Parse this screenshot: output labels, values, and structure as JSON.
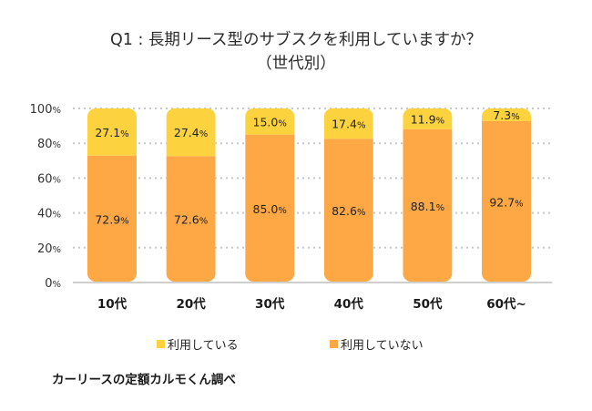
{
  "title": {
    "line1": "Q1 : 長期リース型のサブスクを利用していますか？",
    "line2": "（世代別）"
  },
  "legend": [
    {
      "label": "利用している",
      "color": "#FDD23F"
    },
    {
      "label": "利用していない",
      "color": "#FDA845"
    }
  ],
  "source": "カーリースの定額カルモくん調べ",
  "chart_data": {
    "type": "bar",
    "stacked": true,
    "title": "Q1 : 長期リース型のサブスクを利用していますか？（世代別）",
    "xlabel": "",
    "ylabel": "",
    "ylim": [
      0,
      100
    ],
    "yticks": [
      0,
      20,
      40,
      60,
      80,
      100
    ],
    "ytick_suffix": "%",
    "grid": true,
    "legend_position": "bottom",
    "categories": [
      "10代",
      "20代",
      "30代",
      "40代",
      "50代",
      "60代~"
    ],
    "series": [
      {
        "name": "利用していない",
        "color": "#FDA845",
        "values": [
          72.9,
          72.6,
          85.0,
          82.6,
          88.1,
          92.7
        ]
      },
      {
        "name": "利用している",
        "color": "#FDD23F",
        "values": [
          27.1,
          27.4,
          15.0,
          17.4,
          11.9,
          7.3
        ]
      }
    ],
    "value_suffix": "%"
  }
}
